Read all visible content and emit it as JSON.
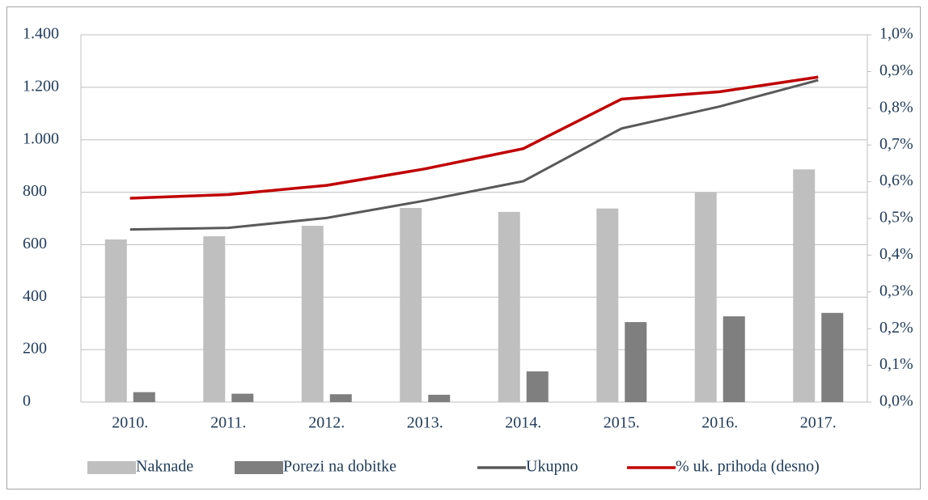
{
  "chart_data": {
    "type": "bar-line",
    "categories": [
      "2010.",
      "2011.",
      "2012.",
      "2013.",
      "2014.",
      "2015.",
      "2016.",
      "2017."
    ],
    "series": [
      {
        "name": "Naknade",
        "type": "bar",
        "color": "#bfbfbf",
        "values": [
          620,
          632,
          672,
          740,
          725,
          738,
          800,
          887
        ]
      },
      {
        "name": "Porezi na dobitke",
        "type": "bar",
        "color": "#7f7f7f",
        "values": [
          38,
          32,
          30,
          28,
          117,
          305,
          327,
          340
        ]
      },
      {
        "name": "Ukupno",
        "type": "line",
        "color": "#595959",
        "values": [
          658,
          664,
          702,
          768,
          842,
          1043,
          1127,
          1227
        ]
      },
      {
        "name": "% uk. prihoda (desno)",
        "type": "line",
        "axis": "y2",
        "color": "#c00000",
        "values": [
          0.555,
          0.565,
          0.59,
          0.635,
          0.69,
          0.825,
          0.845,
          0.885
        ]
      }
    ],
    "ylim": [
      0,
      1400
    ],
    "yticks": [
      0,
      {
        "value": 200,
        "label": "200"
      },
      400,
      600,
      800,
      {
        "value": 1000,
        "label": "1.000"
      },
      {
        "value": 1200,
        "label": "1.200"
      },
      {
        "value": 1400,
        "label": "1.400"
      }
    ],
    "y2lim": [
      0,
      1
    ],
    "y2ticks": [
      {
        "value": 0,
        "label": "0,0%"
      },
      {
        "value": 0.1,
        "label": "0,1%"
      },
      {
        "value": 0.2,
        "label": "0,2%"
      },
      {
        "value": 0.3,
        "label": "0,3%"
      },
      {
        "value": 0.4,
        "label": "0,4%"
      },
      {
        "value": 0.5,
        "label": "0,5%"
      },
      {
        "value": 0.6,
        "label": "0,6%"
      },
      {
        "value": 0.7,
        "label": "0,7%"
      },
      {
        "value": 0.8,
        "label": "0,8%"
      },
      {
        "value": 0.9,
        "label": "0,9%"
      },
      {
        "value": 1,
        "label": "1,0%"
      }
    ],
    "grid": true,
    "legend": "bottom"
  }
}
